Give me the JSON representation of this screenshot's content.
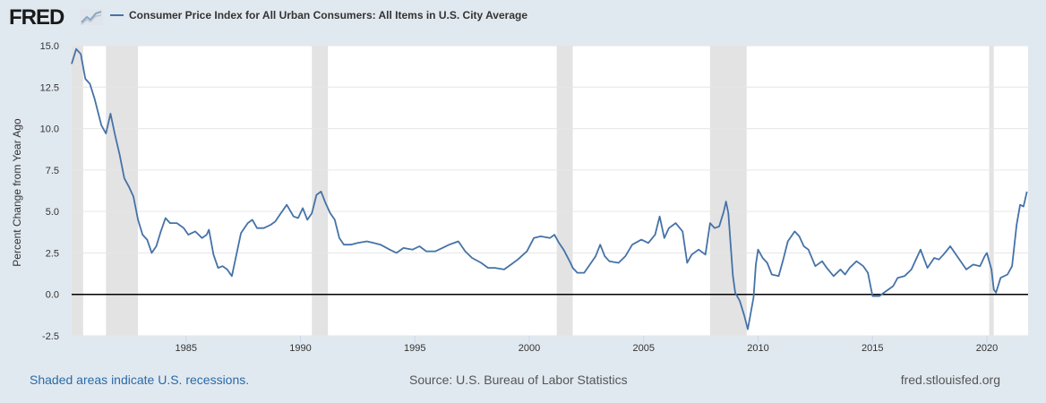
{
  "header": {
    "logo_text": "FRED",
    "logo_icon": "chart-line-icon",
    "series_label": "Consumer Price Index for All Urban Consumers: All Items in U.S. City Average"
  },
  "footer": {
    "recession_note": "Shaded areas indicate U.S. recessions.",
    "source": "Source: U.S. Bureau of Labor Statistics",
    "site": "fred.stlouisfed.org"
  },
  "colors": {
    "line": "#4572a7",
    "recession": "#e3e3e3",
    "zero_line": "#000000",
    "grid": "#e6e6e6",
    "background": "#e1e9f0"
  },
  "chart_data": {
    "type": "line",
    "title": "",
    "xlabel": "",
    "ylabel": "Percent Change from Year Ago",
    "ylim": [
      -2.5,
      15.0
    ],
    "xlim": [
      1980.0,
      2021.8
    ],
    "y_ticks": [
      "15.0",
      "12.5",
      "10.0",
      "7.5",
      "5.0",
      "2.5",
      "0.0",
      "-2.5"
    ],
    "x_ticks": [
      "1985",
      "1990",
      "1995",
      "2000",
      "2005",
      "2010",
      "2015",
      "2020"
    ],
    "recessions": [
      [
        1980.0,
        1980.5
      ],
      [
        1981.5,
        1982.9
      ],
      [
        1990.5,
        1991.2
      ],
      [
        2001.2,
        2001.9
      ],
      [
        2007.9,
        2009.5
      ],
      [
        2020.1,
        2020.3
      ]
    ],
    "series": [
      {
        "values": [
          [
            1980.0,
            13.9
          ],
          [
            1980.2,
            14.8
          ],
          [
            1980.4,
            14.5
          ],
          [
            1980.6,
            13.0
          ],
          [
            1980.8,
            12.7
          ],
          [
            1981.0,
            11.8
          ],
          [
            1981.3,
            10.2
          ],
          [
            1981.5,
            9.7
          ],
          [
            1981.7,
            10.9
          ],
          [
            1981.9,
            9.6
          ],
          [
            1982.1,
            8.4
          ],
          [
            1982.3,
            7.0
          ],
          [
            1982.5,
            6.5
          ],
          [
            1982.7,
            5.9
          ],
          [
            1982.9,
            4.5
          ],
          [
            1983.1,
            3.6
          ],
          [
            1983.3,
            3.3
          ],
          [
            1983.5,
            2.5
          ],
          [
            1983.7,
            2.9
          ],
          [
            1983.9,
            3.8
          ],
          [
            1984.1,
            4.6
          ],
          [
            1984.3,
            4.3
          ],
          [
            1984.6,
            4.3
          ],
          [
            1984.9,
            4.0
          ],
          [
            1985.1,
            3.6
          ],
          [
            1985.4,
            3.8
          ],
          [
            1985.7,
            3.4
          ],
          [
            1985.9,
            3.6
          ],
          [
            1986.0,
            3.9
          ],
          [
            1986.2,
            2.4
          ],
          [
            1986.4,
            1.6
          ],
          [
            1986.6,
            1.7
          ],
          [
            1986.8,
            1.5
          ],
          [
            1987.0,
            1.1
          ],
          [
            1987.2,
            2.4
          ],
          [
            1987.4,
            3.7
          ],
          [
            1987.7,
            4.3
          ],
          [
            1987.9,
            4.5
          ],
          [
            1988.1,
            4.0
          ],
          [
            1988.4,
            4.0
          ],
          [
            1988.7,
            4.2
          ],
          [
            1988.9,
            4.4
          ],
          [
            1989.1,
            4.8
          ],
          [
            1989.4,
            5.4
          ],
          [
            1989.7,
            4.7
          ],
          [
            1989.9,
            4.6
          ],
          [
            1990.1,
            5.2
          ],
          [
            1990.3,
            4.5
          ],
          [
            1990.5,
            4.9
          ],
          [
            1990.7,
            6.0
          ],
          [
            1990.9,
            6.2
          ],
          [
            1991.1,
            5.5
          ],
          [
            1991.3,
            4.9
          ],
          [
            1991.5,
            4.5
          ],
          [
            1991.7,
            3.4
          ],
          [
            1991.9,
            3.0
          ],
          [
            1992.2,
            3.0
          ],
          [
            1992.5,
            3.1
          ],
          [
            1992.9,
            3.2
          ],
          [
            1993.2,
            3.1
          ],
          [
            1993.5,
            3.0
          ],
          [
            1993.9,
            2.7
          ],
          [
            1994.2,
            2.5
          ],
          [
            1994.5,
            2.8
          ],
          [
            1994.9,
            2.7
          ],
          [
            1995.2,
            2.9
          ],
          [
            1995.5,
            2.6
          ],
          [
            1995.9,
            2.6
          ],
          [
            1996.2,
            2.8
          ],
          [
            1996.5,
            3.0
          ],
          [
            1996.9,
            3.2
          ],
          [
            1997.2,
            2.6
          ],
          [
            1997.5,
            2.2
          ],
          [
            1997.9,
            1.9
          ],
          [
            1998.2,
            1.6
          ],
          [
            1998.5,
            1.6
          ],
          [
            1998.9,
            1.5
          ],
          [
            1999.2,
            1.8
          ],
          [
            1999.5,
            2.1
          ],
          [
            1999.9,
            2.6
          ],
          [
            2000.2,
            3.4
          ],
          [
            2000.5,
            3.5
          ],
          [
            2000.9,
            3.4
          ],
          [
            2001.1,
            3.6
          ],
          [
            2001.3,
            3.1
          ],
          [
            2001.5,
            2.7
          ],
          [
            2001.8,
            1.9
          ],
          [
            2001.9,
            1.6
          ],
          [
            2002.1,
            1.3
          ],
          [
            2002.4,
            1.3
          ],
          [
            2002.6,
            1.7
          ],
          [
            2002.9,
            2.3
          ],
          [
            2003.1,
            3.0
          ],
          [
            2003.3,
            2.3
          ],
          [
            2003.5,
            2.0
          ],
          [
            2003.9,
            1.9
          ],
          [
            2004.2,
            2.3
          ],
          [
            2004.5,
            3.0
          ],
          [
            2004.9,
            3.3
          ],
          [
            2005.2,
            3.1
          ],
          [
            2005.5,
            3.6
          ],
          [
            2005.7,
            4.7
          ],
          [
            2005.9,
            3.4
          ],
          [
            2006.1,
            4.0
          ],
          [
            2006.4,
            4.3
          ],
          [
            2006.7,
            3.8
          ],
          [
            2006.9,
            1.9
          ],
          [
            2007.1,
            2.4
          ],
          [
            2007.4,
            2.7
          ],
          [
            2007.7,
            2.4
          ],
          [
            2007.9,
            4.3
          ],
          [
            2008.1,
            4.0
          ],
          [
            2008.3,
            4.1
          ],
          [
            2008.5,
            5.0
          ],
          [
            2008.6,
            5.6
          ],
          [
            2008.7,
            4.9
          ],
          [
            2008.9,
            1.1
          ],
          [
            2009.0,
            0.1
          ],
          [
            2009.2,
            -0.4
          ],
          [
            2009.4,
            -1.3
          ],
          [
            2009.55,
            -2.1
          ],
          [
            2009.8,
            -0.2
          ],
          [
            2009.9,
            1.8
          ],
          [
            2010.0,
            2.7
          ],
          [
            2010.2,
            2.2
          ],
          [
            2010.4,
            1.9
          ],
          [
            2010.6,
            1.2
          ],
          [
            2010.9,
            1.1
          ],
          [
            2011.1,
            2.1
          ],
          [
            2011.3,
            3.2
          ],
          [
            2011.6,
            3.8
          ],
          [
            2011.8,
            3.5
          ],
          [
            2012.0,
            2.9
          ],
          [
            2012.2,
            2.7
          ],
          [
            2012.5,
            1.7
          ],
          [
            2012.8,
            2.0
          ],
          [
            2013.0,
            1.6
          ],
          [
            2013.3,
            1.1
          ],
          [
            2013.6,
            1.5
          ],
          [
            2013.8,
            1.2
          ],
          [
            2014.0,
            1.6
          ],
          [
            2014.3,
            2.0
          ],
          [
            2014.6,
            1.7
          ],
          [
            2014.8,
            1.3
          ],
          [
            2015.0,
            -0.1
          ],
          [
            2015.3,
            -0.1
          ],
          [
            2015.6,
            0.2
          ],
          [
            2015.9,
            0.5
          ],
          [
            2016.1,
            1.0
          ],
          [
            2016.4,
            1.1
          ],
          [
            2016.7,
            1.5
          ],
          [
            2016.9,
            2.1
          ],
          [
            2017.1,
            2.7
          ],
          [
            2017.4,
            1.6
          ],
          [
            2017.7,
            2.2
          ],
          [
            2017.9,
            2.1
          ],
          [
            2018.1,
            2.4
          ],
          [
            2018.4,
            2.9
          ],
          [
            2018.7,
            2.3
          ],
          [
            2018.9,
            1.9
          ],
          [
            2019.1,
            1.5
          ],
          [
            2019.4,
            1.8
          ],
          [
            2019.7,
            1.7
          ],
          [
            2019.9,
            2.3
          ],
          [
            2020.0,
            2.5
          ],
          [
            2020.2,
            1.5
          ],
          [
            2020.3,
            0.3
          ],
          [
            2020.4,
            0.1
          ],
          [
            2020.6,
            1.0
          ],
          [
            2020.9,
            1.2
          ],
          [
            2021.1,
            1.7
          ],
          [
            2021.3,
            4.2
          ],
          [
            2021.45,
            5.4
          ],
          [
            2021.6,
            5.3
          ],
          [
            2021.75,
            6.2
          ]
        ]
      }
    ]
  }
}
